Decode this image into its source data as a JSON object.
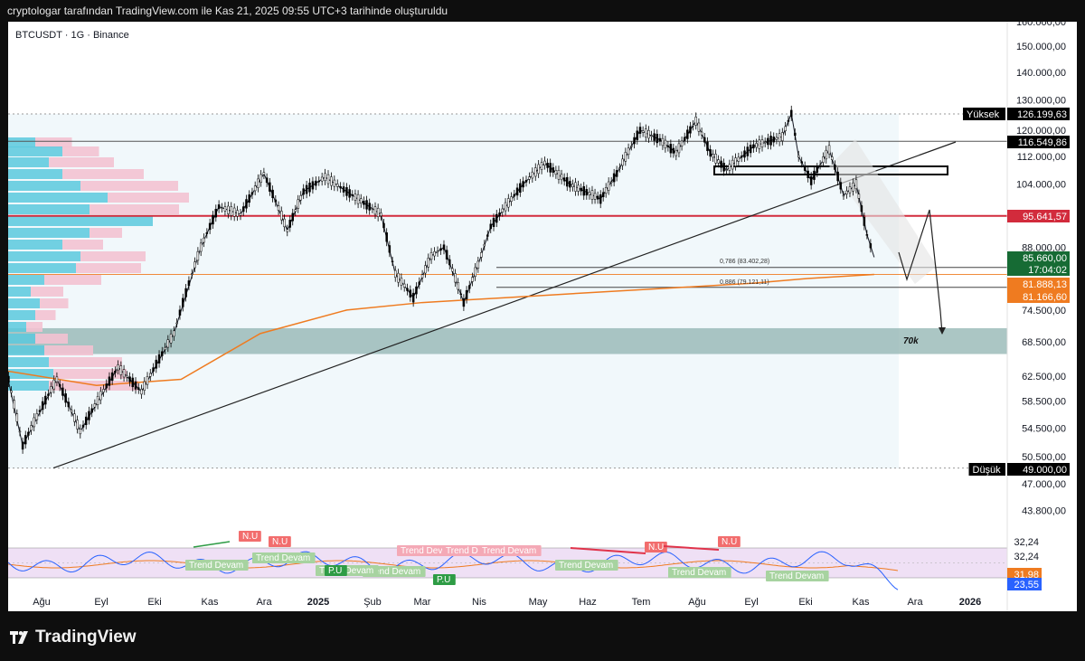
{
  "header": {
    "caption": "cryptologar tarafından TradingView.com ile Kas 21, 2025 09:55 UTC+3 tarihinde oluşturuldu"
  },
  "footer": {
    "brand": "TradingView"
  },
  "chart_data": {
    "type": "line",
    "symbol_label": "BTCUSDT · 1G · Binance",
    "price_axis": {
      "scale": "log",
      "ylim": [
        40000,
        163000
      ],
      "ticks": [
        "160.000,00",
        "150.000,00",
        "140.000,00",
        "130.000,00",
        "120.000,00",
        "112.000,00",
        "104.000,00",
        "88.000,00",
        "74.500,00",
        "68.500,00",
        "62.500,00",
        "58.500,00",
        "54.500,00",
        "50.500,00",
        "47.000,00",
        "43.800,00"
      ]
    },
    "time_axis": {
      "ticks": [
        "Ağu",
        "Eyl",
        "Eki",
        "Kas",
        "Ara",
        "2025",
        "Şub",
        "Mar",
        "Nis",
        "May",
        "Haz",
        "Tem",
        "Ağu",
        "Eyl",
        "Eki",
        "Kas",
        "Ara",
        "2026"
      ],
      "bold_ticks": [
        "2025",
        "2026"
      ]
    },
    "series": [
      {
        "name": "BTCUSDT",
        "color": "#131722",
        "x": [
          "2024-07-25",
          "2024-08-05",
          "2024-08-24",
          "2024-09-06",
          "2024-09-27",
          "2024-10-10",
          "2024-10-28",
          "2024-11-12",
          "2024-11-22",
          "2024-12-04",
          "2024-12-17",
          "2024-12-30",
          "2025-01-08",
          "2025-01-20",
          "2025-02-01",
          "2025-02-20",
          "2025-02-28",
          "2025-03-10",
          "2025-03-20",
          "2025-03-27",
          "2025-04-07",
          "2025-04-15",
          "2025-04-22",
          "2025-05-10",
          "2025-05-22",
          "2025-06-05",
          "2025-06-22",
          "2025-07-01",
          "2025-07-14",
          "2025-07-25",
          "2025-08-03",
          "2025-08-14",
          "2025-08-22",
          "2025-08-31",
          "2025-09-15",
          "2025-10-01",
          "2025-10-06",
          "2025-10-10",
          "2025-10-17",
          "2025-10-27",
          "2025-11-04",
          "2025-11-11",
          "2025-11-17",
          "2025-11-21"
        ],
        "values": [
          66000,
          52000,
          62000,
          54000,
          64000,
          60000,
          70000,
          88000,
          98000,
          96000,
          107000,
          92000,
          102000,
          106000,
          102000,
          96000,
          82000,
          77000,
          86000,
          88000,
          76000,
          84000,
          93000,
          104000,
          110000,
          104000,
          100000,
          107000,
          120000,
          117000,
          113000,
          123000,
          113000,
          108000,
          115000,
          118000,
          125500,
          112000,
          105000,
          114000,
          101000,
          104000,
          91000,
          85700
        ]
      },
      {
        "name": "SMA",
        "color": "#ef7b20",
        "x": [
          "2024-07-25",
          "2024-09-15",
          "2024-11-01",
          "2024-12-15",
          "2025-02-01",
          "2025-03-15",
          "2025-05-01",
          "2025-06-15",
          "2025-08-01",
          "2025-09-15",
          "2025-10-15",
          "2025-11-21"
        ],
        "values": [
          63500,
          61000,
          62000,
          70000,
          74500,
          76000,
          77000,
          78000,
          79000,
          80000,
          81000,
          81888
        ]
      }
    ],
    "price_tags": [
      {
        "label": "Yüksek",
        "value": "126.199,63",
        "bg": "#000000",
        "fg": "#ffffff"
      },
      {
        "label": "",
        "value": "116.549,86",
        "bg": "#000000",
        "fg": "#ffffff"
      },
      {
        "label": "",
        "value": "95.641,57",
        "bg": "#d22b3c",
        "fg": "#ffffff"
      },
      {
        "label": "",
        "value": "85.660,00",
        "bg": "#166b34",
        "fg": "#ffffff"
      },
      {
        "label": "",
        "value": "17:04:02",
        "bg": "#166b34",
        "fg": "#ffffff"
      },
      {
        "label": "",
        "value": "81.888,13",
        "bg": "#ef7b20",
        "fg": "#ffffff"
      },
      {
        "label": "",
        "value": "81.166,60",
        "bg": "#ef7b20",
        "fg": "#ffffff"
      },
      {
        "label": "Düşük",
        "value": "49.000,00",
        "bg": "#000000",
        "fg": "#ffffff"
      }
    ],
    "annotations": [
      "0,786 (83.402,28)",
      "0,886 (79.121,11)",
      "70k"
    ],
    "oscillator": {
      "ticks": [
        "32,24",
        "32,24"
      ],
      "tags": [
        {
          "value": "31,98",
          "bg": "#ef7b20"
        },
        {
          "value": "23,55",
          "bg": "#2962ff"
        }
      ],
      "labels": [
        {
          "text": "Trend Devam",
          "kind": "pink"
        },
        {
          "text": "Trend Devam",
          "kind": "pink"
        },
        {
          "text": "Trend Devam",
          "kind": "pink"
        },
        {
          "text": "Trend Devam",
          "kind": "green"
        },
        {
          "text": "Trend Devam",
          "kind": "green"
        },
        {
          "text": "Trend Devam",
          "kind": "green"
        },
        {
          "text": "Trend Devam",
          "kind": "green"
        },
        {
          "text": "Trend Devam",
          "kind": "green"
        },
        {
          "text": "Trend Devam",
          "kind": "green"
        },
        {
          "text": "Trend Devam",
          "kind": "green"
        },
        {
          "text": "N.U",
          "kind": "red"
        },
        {
          "text": "N.U",
          "kind": "red"
        },
        {
          "text": "N.U",
          "kind": "red"
        },
        {
          "text": "N.U",
          "kind": "red"
        },
        {
          "text": "P.U",
          "kind": "solidgreen"
        },
        {
          "text": "P.U",
          "kind": "solidgreen"
        }
      ]
    },
    "colors": {
      "axis_text": "#131722",
      "bear_fill": "#000000",
      "resistance": "#d22b3c",
      "volume_profile_up": "#5bc9dd",
      "volume_profile_down": "#f3c2d1",
      "zone": "#8fb3b0",
      "oscillator_bg": "#efe0f5"
    }
  }
}
